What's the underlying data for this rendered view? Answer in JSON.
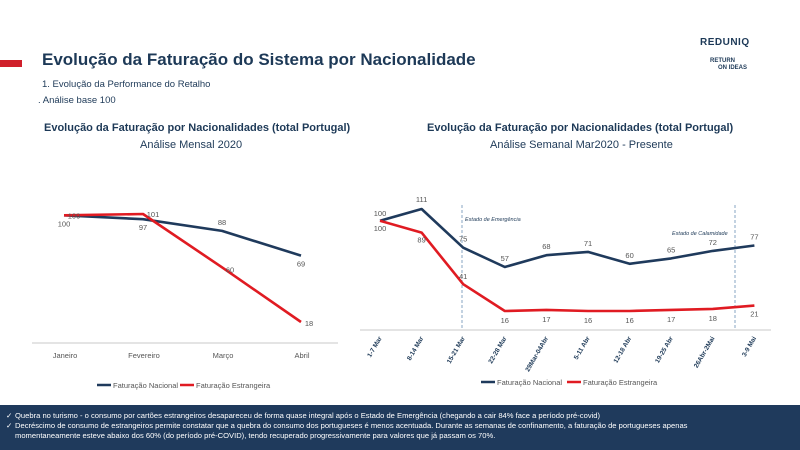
{
  "header": {
    "title": "Evolução da Faturação do Sistema por Nacionalidade",
    "subtitle1": "1.   Evolução da Performance do Retalho",
    "subtitle2": ". Análise base 100",
    "logo_reduniq": "REDUNIQ",
    "logo_return_line1": "RETURN",
    "logo_return_line2": "ON IDEAS"
  },
  "colors": {
    "nacional": "#1f3a5c",
    "estrangeira": "#e01b22",
    "accent": "#d0202b",
    "footer_bg": "#1f3a5c"
  },
  "chart_data": [
    {
      "type": "line",
      "title": "Evolução da Faturação por Nacionalidades (total Portugal)",
      "subtitle": "Análise Mensal 2020",
      "categories": [
        "Janeiro",
        "Fevereiro",
        "Março",
        "Abril"
      ],
      "series": [
        {
          "name": "Faturação Nacional",
          "color": "#1f3a5c",
          "values": [
            100,
            97,
            88,
            69
          ]
        },
        {
          "name": "Faturação Estrangeira",
          "color": "#e01b22",
          "values": [
            100,
            101,
            60,
            18
          ]
        }
      ],
      "ylim": [
        0,
        120
      ],
      "legend": "bottom",
      "grid": false
    },
    {
      "type": "line",
      "title": "Evolução da Faturação por Nacionalidades (total Portugal)",
      "subtitle": "Análise Semanal Mar2020 - Presente",
      "categories": [
        "1-7 Mar",
        "8-14 Mar",
        "15-21 Mar",
        "22-28 Mar",
        "29Mar-04Abr",
        "5-11 Abr",
        "12-18 Abr",
        "19-25 Abr",
        "26Abr-2Mai",
        "3-9 Mai"
      ],
      "series": [
        {
          "name": "Faturação Nacional",
          "color": "#1f3a5c",
          "values": [
            100,
            111,
            75,
            57,
            68,
            71,
            60,
            65,
            72,
            77
          ]
        },
        {
          "name": "Faturação Estrangeira",
          "color": "#e01b22",
          "values": [
            100,
            89,
            41,
            16,
            17,
            16,
            16,
            17,
            18,
            21
          ]
        }
      ],
      "annotations": [
        "Estado de Emergência",
        "Estado de Calamidade"
      ],
      "ylim": [
        0,
        120
      ],
      "legend": "bottom",
      "grid": false
    }
  ],
  "footer": {
    "note1": "Quebra no turismo - o consumo por cartões estrangeiros desapareceu de forma quase integral após o Estado de Emergência (chegando a cair 84% face a período pré-covid)",
    "note2_line1": "Decréscimo de consumo de estrangeiros permite constatar que a quebra do consumo dos portugueses é menos acentuada. Durante as semanas de confinamento, a faturação de portugueses apenas",
    "note2_line2": "momentaneamente esteve abaixo dos 60% (do período pré-COVID), tendo recuperado progressivamente para valores que já passam os 70%."
  }
}
